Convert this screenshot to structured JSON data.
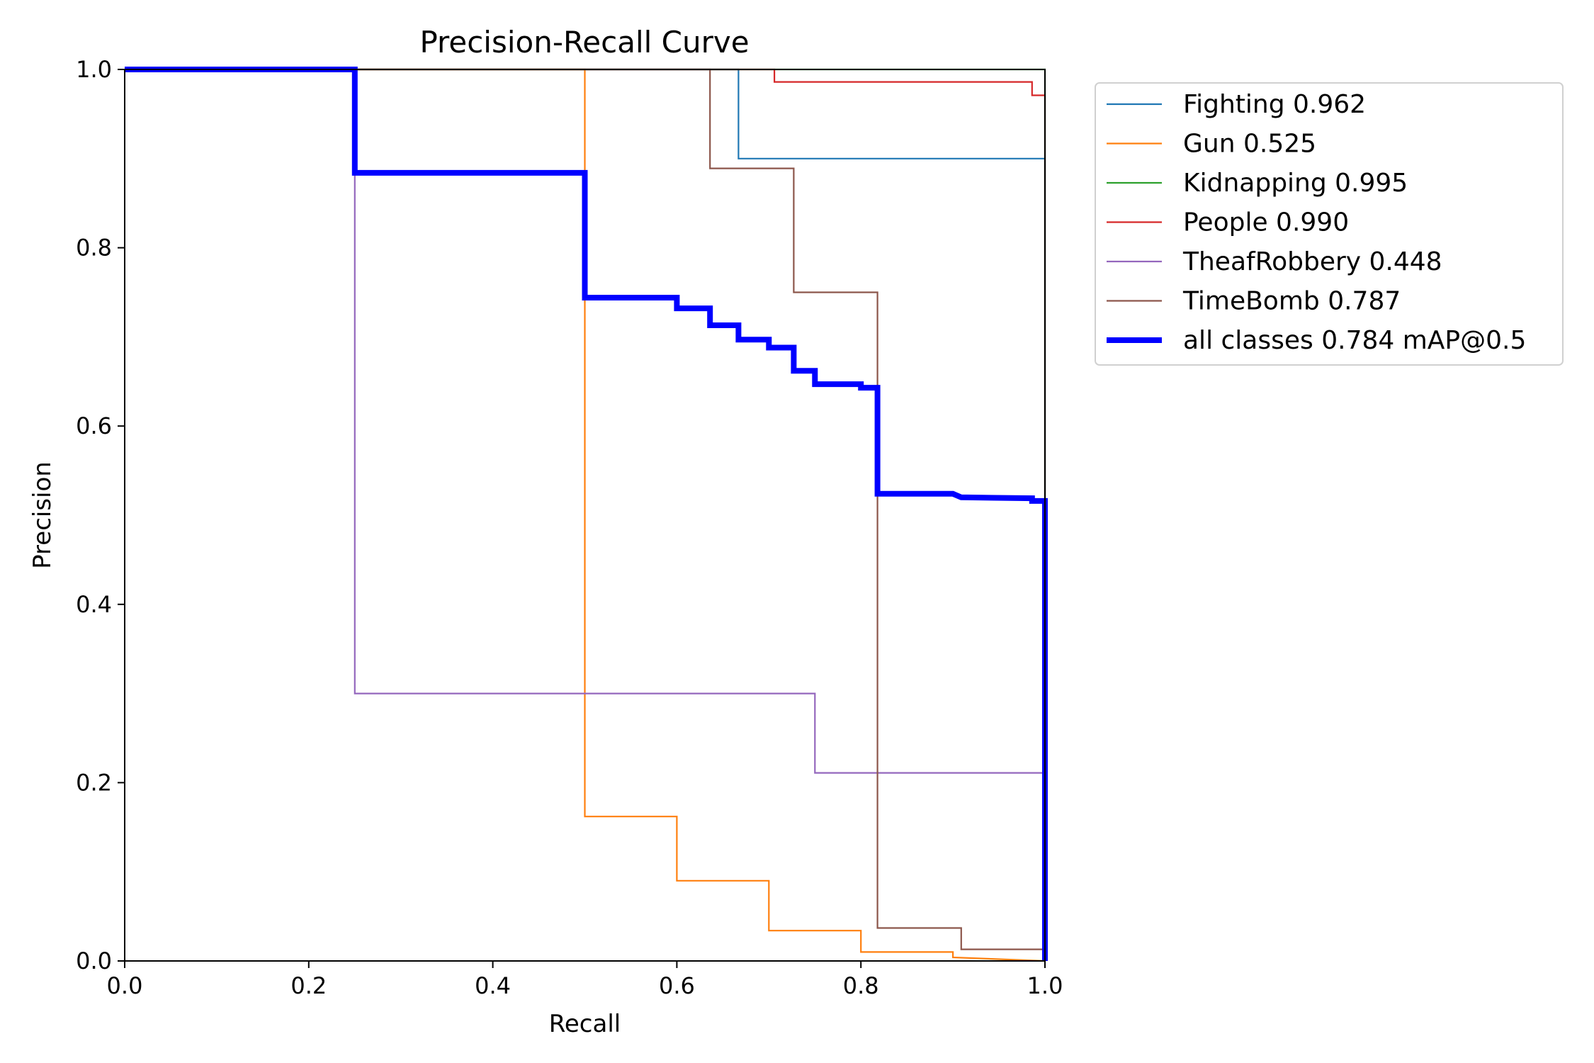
{
  "chart_data": {
    "type": "line",
    "title": "Precision-Recall Curve",
    "xlabel": "Recall",
    "ylabel": "Precision",
    "xlim": [
      0,
      1
    ],
    "ylim": [
      0,
      1
    ],
    "xticks": [
      "0.0",
      "0.2",
      "0.4",
      "0.6",
      "0.8",
      "1.0"
    ],
    "yticks": [
      "0.0",
      "0.2",
      "0.4",
      "0.6",
      "0.8",
      "1.0"
    ],
    "grid": false,
    "legend_position": "outside-right",
    "series": [
      {
        "name": "Fighting 0.962",
        "color": "#1f77b4",
        "points": [
          [
            0,
            1
          ],
          [
            0.667,
            1
          ],
          [
            0.667,
            0.9
          ],
          [
            1.0,
            0.9
          ],
          [
            1.0,
            0
          ]
        ]
      },
      {
        "name": "Gun 0.525",
        "color": "#ff7f0e",
        "points": [
          [
            0,
            1
          ],
          [
            0.5,
            1
          ],
          [
            0.5,
            0.162
          ],
          [
            0.6,
            0.162
          ],
          [
            0.6,
            0.09
          ],
          [
            0.7,
            0.09
          ],
          [
            0.7,
            0.034
          ],
          [
            0.8,
            0.034
          ],
          [
            0.8,
            0.01
          ],
          [
            0.9,
            0.01
          ],
          [
            0.9,
            0.004
          ],
          [
            1.0,
            0.0
          ]
        ]
      },
      {
        "name": "Kidnapping 0.995",
        "color": "#2ca02c",
        "points": [
          [
            0,
            1
          ],
          [
            1.0,
            1
          ],
          [
            1.0,
            0
          ]
        ]
      },
      {
        "name": "People 0.990",
        "color": "#d62728",
        "points": [
          [
            0,
            1
          ],
          [
            0.706,
            1
          ],
          [
            0.706,
            0.986
          ],
          [
            0.986,
            0.986
          ],
          [
            0.986,
            0.971
          ],
          [
            1.0,
            0.971
          ],
          [
            1.0,
            0
          ]
        ]
      },
      {
        "name": "TheafRobbery 0.448",
        "color": "#9467bd",
        "points": [
          [
            0,
            1
          ],
          [
            0.25,
            1
          ],
          [
            0.25,
            0.3
          ],
          [
            0.75,
            0.3
          ],
          [
            0.75,
            0.211
          ],
          [
            1.0,
            0.211
          ],
          [
            1.0,
            0
          ]
        ]
      },
      {
        "name": "TimeBomb 0.787",
        "color": "#8c564b",
        "points": [
          [
            0,
            1
          ],
          [
            0.636,
            1
          ],
          [
            0.636,
            0.889
          ],
          [
            0.727,
            0.889
          ],
          [
            0.727,
            0.75
          ],
          [
            0.818,
            0.75
          ],
          [
            0.818,
            0.037
          ],
          [
            0.909,
            0.037
          ],
          [
            0.909,
            0.013
          ],
          [
            1.0,
            0.013
          ],
          [
            1.0,
            0
          ]
        ]
      },
      {
        "name": "all classes 0.784 mAP@0.5",
        "color": "#0000ff",
        "bold": true,
        "points": [
          [
            0,
            1
          ],
          [
            0.25,
            1
          ],
          [
            0.25,
            0.884
          ],
          [
            0.5,
            0.884
          ],
          [
            0.5,
            0.744
          ],
          [
            0.6,
            0.744
          ],
          [
            0.6,
            0.732
          ],
          [
            0.636,
            0.732
          ],
          [
            0.636,
            0.713
          ],
          [
            0.667,
            0.713
          ],
          [
            0.667,
            0.697
          ],
          [
            0.7,
            0.697
          ],
          [
            0.7,
            0.688
          ],
          [
            0.727,
            0.688
          ],
          [
            0.727,
            0.662
          ],
          [
            0.75,
            0.662
          ],
          [
            0.75,
            0.647
          ],
          [
            0.8,
            0.647
          ],
          [
            0.8,
            0.643
          ],
          [
            0.818,
            0.643
          ],
          [
            0.818,
            0.524
          ],
          [
            0.9,
            0.524
          ],
          [
            0.909,
            0.52
          ],
          [
            0.986,
            0.519
          ],
          [
            0.986,
            0.516
          ],
          [
            1.0,
            0.516
          ],
          [
            1.0,
            0
          ]
        ]
      }
    ]
  }
}
